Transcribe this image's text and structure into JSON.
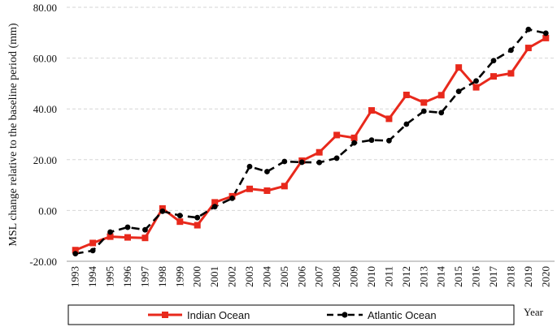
{
  "chart_data": {
    "type": "line",
    "ylabel": "MSL change relative to the baseline period (mm)",
    "xlabel": "Year",
    "ylim": [
      -20,
      80
    ],
    "yticks": [
      "-20.00",
      "0.00",
      "20.00",
      "40.00",
      "60.00",
      "80.00"
    ],
    "grid": true,
    "legend_position": "bottom",
    "x": [
      "1993",
      "1994",
      "1995",
      "1996",
      "1997",
      "1998",
      "1999",
      "2000",
      "2001",
      "2002",
      "2003",
      "2004",
      "2005",
      "2006",
      "2007",
      "2008",
      "2009",
      "2010",
      "2011",
      "2012",
      "2013",
      "2014",
      "2015",
      "2016",
      "2017",
      "2018",
      "2019",
      "2020"
    ],
    "series": [
      {
        "name": "Indian Ocean",
        "color": "#e8291c",
        "style": "solid",
        "marker": "square",
        "values": [
          -15.6,
          -12.8,
          -10.3,
          -10.6,
          -10.8,
          0.8,
          -4.4,
          -5.8,
          3.2,
          5.6,
          8.5,
          7.8,
          9.6,
          19.6,
          22.9,
          29.7,
          28.6,
          39.4,
          36.1,
          45.5,
          42.5,
          45.4,
          56.3,
          48.5,
          52.8,
          54.0,
          64.0,
          67.9
        ]
      },
      {
        "name": "Atlantic Ocean",
        "color": "#000000",
        "style": "dashed",
        "marker": "circle",
        "values": [
          -17.0,
          -15.8,
          -8.5,
          -6.6,
          -7.6,
          -0.3,
          -2.0,
          -2.8,
          1.5,
          4.8,
          17.3,
          15.3,
          19.3,
          19.0,
          18.9,
          20.6,
          26.6,
          27.7,
          27.5,
          34.0,
          39.1,
          38.5,
          46.9,
          51.0,
          59.0,
          63.1,
          71.3,
          69.8
        ]
      }
    ]
  }
}
